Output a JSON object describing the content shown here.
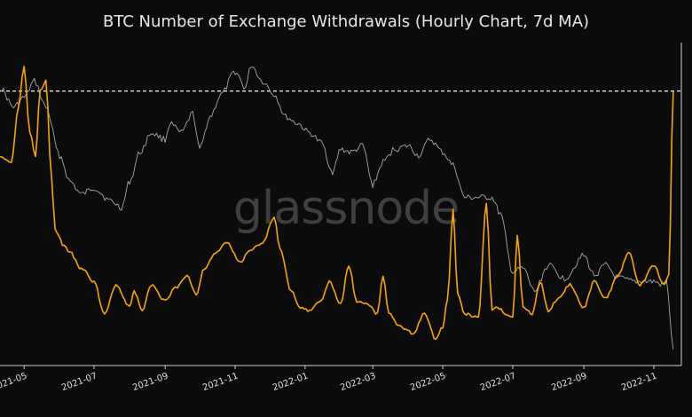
{
  "chart_data": {
    "type": "line",
    "title": "BTC Number of Exchange Withdrawals (Hourly Chart, 7d MA)",
    "watermark": "glassnode",
    "x_tick_labels": [
      "2021-05",
      "2021-07",
      "2021-09",
      "2021-11",
      "2022-01",
      "2022-03",
      "2022-05",
      "2022-07",
      "2022-09",
      "2022-11"
    ],
    "x_tick_dates": [
      "2021-05-01",
      "2021-07-01",
      "2021-09-01",
      "2021-11-01",
      "2022-01-01",
      "2022-03-01",
      "2022-05-01",
      "2022-07-01",
      "2022-09-01",
      "2022-11-01"
    ],
    "x_range": [
      "2021-04-10",
      "2022-11-25"
    ],
    "y_range": [
      0,
      100
    ],
    "reference_line": {
      "value": 85,
      "style": "dashed",
      "color": "#ffffff"
    },
    "grid": false,
    "series": [
      {
        "color": "#f7a600",
        "x": [
          "2021-04-10",
          "2021-04-20",
          "2021-04-26",
          "2021-05-01",
          "2021-05-06",
          "2021-05-11",
          "2021-05-15",
          "2021-05-20",
          "2021-05-25",
          "2021-05-28",
          "2021-06-05",
          "2021-06-10",
          "2021-06-20",
          "2021-07-01",
          "2021-07-10",
          "2021-07-20",
          "2021-08-01",
          "2021-08-05",
          "2021-08-12",
          "2021-08-20",
          "2021-09-01",
          "2021-09-10",
          "2021-09-20",
          "2021-09-28",
          "2021-10-05",
          "2021-10-15",
          "2021-10-25",
          "2021-11-05",
          "2021-11-15",
          "2021-11-25",
          "2021-12-05",
          "2021-12-10",
          "2021-12-20",
          "2021-12-28",
          "2022-01-05",
          "2022-01-15",
          "2022-01-22",
          "2022-02-01",
          "2022-02-08",
          "2022-02-15",
          "2022-02-25",
          "2022-03-05",
          "2022-03-10",
          "2022-03-15",
          "2022-03-25",
          "2022-04-05",
          "2022-04-15",
          "2022-04-25",
          "2022-05-01",
          "2022-05-05",
          "2022-05-10",
          "2022-05-14",
          "2022-05-20",
          "2022-06-01",
          "2022-06-08",
          "2022-06-13",
          "2022-06-18",
          "2022-06-25",
          "2022-07-01",
          "2022-07-05",
          "2022-07-10",
          "2022-07-18",
          "2022-07-25",
          "2022-08-01",
          "2022-08-10",
          "2022-08-20",
          "2022-09-01",
          "2022-09-10",
          "2022-09-20",
          "2022-10-01",
          "2022-10-10",
          "2022-10-20",
          "2022-11-01",
          "2022-11-10",
          "2022-11-14",
          "2022-11-18"
        ],
        "values": [
          65,
          63,
          80,
          93,
          72,
          65,
          85,
          88,
          58,
          42,
          37,
          35,
          30,
          26,
          16,
          25,
          18,
          23,
          17,
          25,
          20,
          24,
          28,
          22,
          30,
          35,
          38,
          32,
          36,
          38,
          46,
          36,
          23,
          18,
          17,
          20,
          26,
          19,
          31,
          20,
          19,
          16,
          28,
          16,
          12,
          10,
          16,
          8,
          12,
          20,
          48,
          22,
          16,
          15,
          50,
          17,
          18,
          16,
          15,
          40,
          18,
          16,
          26,
          17,
          21,
          25,
          18,
          26,
          21,
          28,
          35,
          25,
          31,
          25,
          28,
          85
        ]
      },
      {
        "color": "#a8a8a8",
        "x": [
          "2021-04-10",
          "2021-04-22",
          "2021-05-01",
          "2021-05-10",
          "2021-05-20",
          "2021-06-01",
          "2021-06-10",
          "2021-06-20",
          "2021-07-01",
          "2021-07-15",
          "2021-07-25",
          "2021-08-01",
          "2021-08-10",
          "2021-08-20",
          "2021-09-01",
          "2021-09-05",
          "2021-09-15",
          "2021-09-25",
          "2021-10-01",
          "2021-10-10",
          "2021-10-20",
          "2021-11-01",
          "2021-11-10",
          "2021-11-15",
          "2021-11-25",
          "2021-12-05",
          "2021-12-15",
          "2021-12-25",
          "2022-01-05",
          "2022-01-15",
          "2022-01-25",
          "2022-02-01",
          "2022-02-10",
          "2022-02-20",
          "2022-03-01",
          "2022-03-10",
          "2022-03-20",
          "2022-04-01",
          "2022-04-10",
          "2022-04-20",
          "2022-05-01",
          "2022-05-10",
          "2022-05-20",
          "2022-06-01",
          "2022-06-13",
          "2022-06-20",
          "2022-07-01",
          "2022-07-10",
          "2022-07-20",
          "2022-08-01",
          "2022-08-15",
          "2022-09-01",
          "2022-09-10",
          "2022-09-20",
          "2022-10-01",
          "2022-10-15",
          "2022-11-01",
          "2022-11-08",
          "2022-11-12",
          "2022-11-18"
        ],
        "values": [
          86,
          80,
          83,
          88,
          80,
          65,
          57,
          53,
          55,
          51,
          49,
          57,
          66,
          72,
          70,
          75,
          72,
          78,
          67,
          77,
          84,
          91,
          86,
          93,
          88,
          84,
          77,
          75,
          72,
          69,
          60,
          67,
          66,
          68,
          56,
          63,
          67,
          68,
          65,
          70,
          66,
          62,
          52,
          52,
          52,
          47,
          29,
          30,
          23,
          31,
          27,
          34,
          28,
          31,
          27,
          26,
          26,
          25,
          26,
          5
        ]
      }
    ]
  }
}
